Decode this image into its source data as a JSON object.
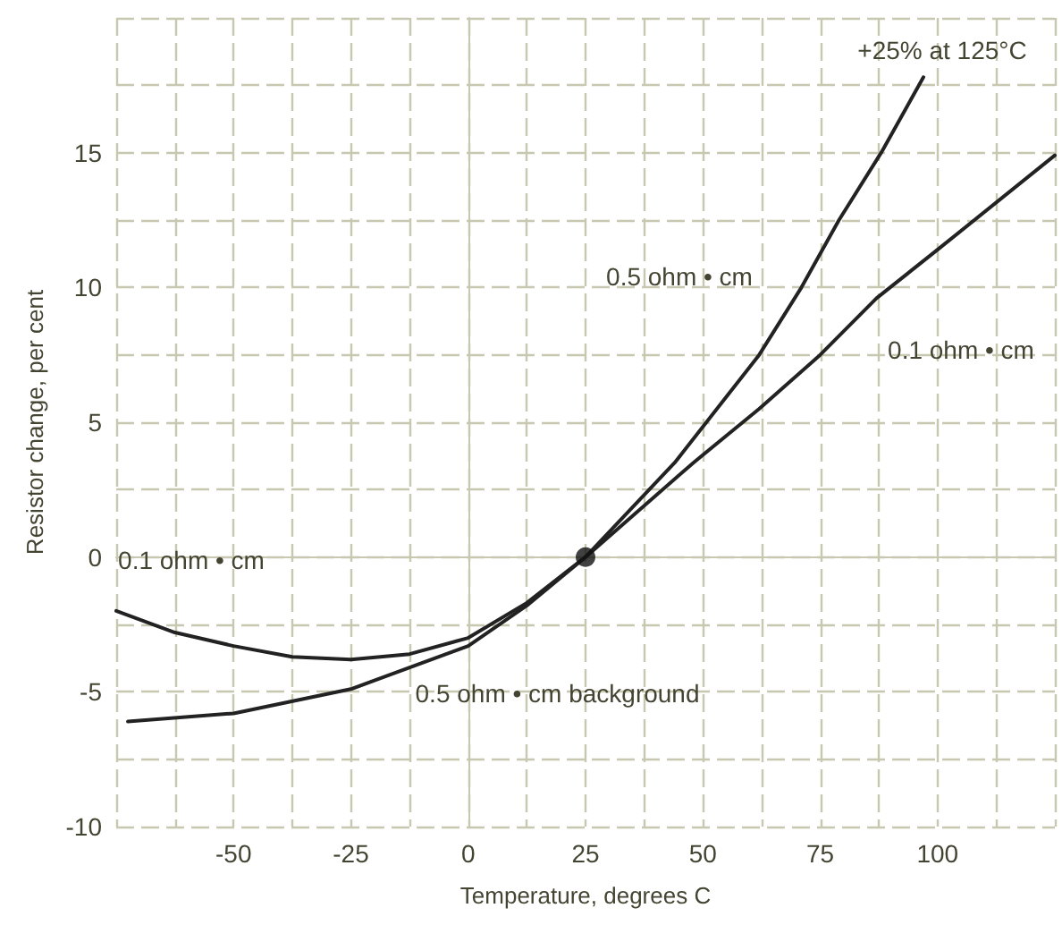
{
  "chart_data": {
    "type": "line",
    "xlabel": "Temperature, degrees C",
    "ylabel": "Resistor change, per cent",
    "xlim": [
      -75,
      125
    ],
    "xticks": [
      {
        "value": -75,
        "label": null
      },
      {
        "value": -62.5,
        "label": null
      },
      -50,
      {
        "value": -37.5,
        "label": null
      },
      -25,
      {
        "value": -12.5,
        "label": null
      },
      0,
      {
        "value": 12.5,
        "label": null
      },
      25,
      {
        "value": 37.5,
        "label": null
      },
      50,
      {
        "value": 62.5,
        "label": null
      },
      75,
      {
        "value": 87.5,
        "label": null
      },
      100,
      {
        "value": 112.5,
        "label": null
      },
      {
        "value": 125,
        "label": null
      }
    ],
    "ylim": [
      -10,
      20
    ],
    "yticks": [
      -10,
      {
        "value": -7.5,
        "label": null
      },
      -5,
      {
        "value": -2.5,
        "label": null
      },
      0,
      {
        "value": 2.5,
        "label": null
      },
      5,
      {
        "value": 7.5,
        "label": null
      },
      10,
      {
        "value": 12.5,
        "label": null
      },
      15,
      {
        "value": 17.5,
        "label": null
      },
      {
        "value": 20,
        "label": null
      }
    ],
    "grid": true,
    "marker": "none",
    "line_style": "solid",
    "series": [
      {
        "color": "#222222",
        "x": [
          -75,
          -62.5,
          -50,
          -37.5,
          -25,
          -12.5,
          0,
          12.5,
          25,
          48,
          62,
          75,
          87,
          100,
          125
        ],
        "values": [
          -2.0,
          -2.8,
          -3.3,
          -3.7,
          -3.8,
          -3.6,
          -3.0,
          -1.7,
          0,
          3.5,
          5.5,
          7.5,
          9.6,
          11.4,
          14.9
        ]
      },
      {
        "color": "#222222",
        "x": [
          -72.5,
          -50,
          -25,
          0,
          12.5,
          25,
          44,
          62,
          71,
          79,
          88,
          97
        ],
        "values": [
          -6.1,
          -5.8,
          -4.9,
          -3.3,
          -1.8,
          0,
          3.5,
          7.5,
          10,
          12.5,
          15,
          17.8
        ]
      },
      {
        "type": "scatter",
        "marker": "circle",
        "color": "#111111",
        "x": [
          25
        ],
        "values": [
          0
        ]
      }
    ],
    "annotations": [
      "+25% at 125°C",
      "0.5 ohm • cm",
      "0.1 ohm • cm",
      "0.1 ohm • cm",
      "0.5 ohm • cm background"
    ]
  }
}
